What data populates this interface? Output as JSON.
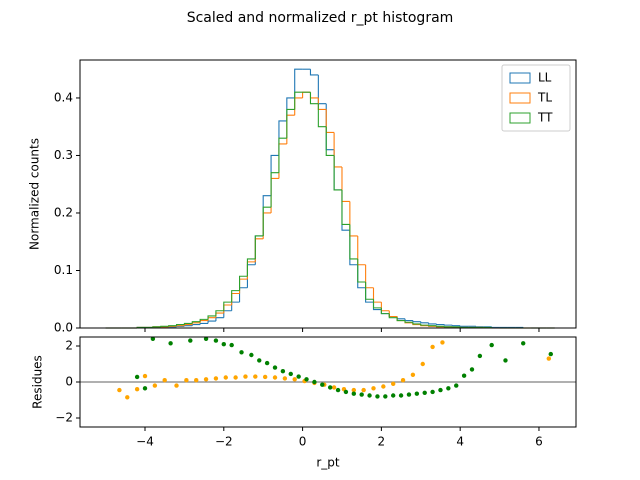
{
  "chart_data": [
    {
      "type": "histogram",
      "title": "Scaled and normalized r_pt histogram",
      "ylabel": "Normalized counts",
      "bins": [
        -5,
        -4.8,
        -4.6,
        -4.4,
        -4.2,
        -4,
        -3.8,
        -3.6,
        -3.4,
        -3.2,
        -3,
        -2.8,
        -2.6,
        -2.4,
        -2.2,
        -2,
        -1.8,
        -1.6,
        -1.4,
        -1.2,
        -1,
        -0.8,
        -0.6,
        -0.4,
        -0.2,
        0,
        0.2,
        0.4,
        0.6,
        0.8,
        1,
        1.2,
        1.4,
        1.6,
        1.8,
        2,
        2.2,
        2.4,
        2.6,
        2.8,
        3,
        3.2,
        3.4,
        3.6,
        3.8,
        4,
        4.2,
        4.4,
        4.6,
        4.8,
        5,
        5.2,
        5.4,
        5.6,
        5.8,
        6,
        6.2,
        6.4
      ],
      "series": [
        {
          "name": "LL",
          "color": "#1f77b4",
          "values": [
            0,
            0,
            0,
            0,
            0.001,
            0.001,
            0.001,
            0.001,
            0.002,
            0.003,
            0.004,
            0.006,
            0.008,
            0.012,
            0.018,
            0.03,
            0.045,
            0.07,
            0.11,
            0.16,
            0.23,
            0.3,
            0.36,
            0.4,
            0.45,
            0.45,
            0.44,
            0.39,
            0.31,
            0.24,
            0.17,
            0.11,
            0.07,
            0.045,
            0.032,
            0.025,
            0.02,
            0.016,
            0.013,
            0.011,
            0.009,
            0.007,
            0.006,
            0.005,
            0.004,
            0.003,
            0.003,
            0.002,
            0.002,
            0.001,
            0.001,
            0.001,
            0.001,
            0,
            0,
            0,
            0
          ]
        },
        {
          "name": "TL",
          "color": "#ff7f0e",
          "values": [
            0,
            0,
            0,
            0,
            0.001,
            0.001,
            0.002,
            0.002,
            0.003,
            0.004,
            0.006,
            0.009,
            0.013,
            0.018,
            0.026,
            0.04,
            0.06,
            0.085,
            0.115,
            0.155,
            0.2,
            0.26,
            0.32,
            0.37,
            0.4,
            0.41,
            0.4,
            0.38,
            0.34,
            0.28,
            0.22,
            0.16,
            0.11,
            0.07,
            0.045,
            0.03,
            0.02,
            0.013,
            0.009,
            0.006,
            0.004,
            0.003,
            0.002,
            0.002,
            0.001,
            0.001,
            0.001,
            0.001,
            0,
            0,
            0,
            0,
            0,
            0,
            0,
            0,
            0
          ]
        },
        {
          "name": "TT",
          "color": "#2ca02c",
          "values": [
            0,
            0,
            0,
            0,
            0.001,
            0.001,
            0.002,
            0.003,
            0.004,
            0.006,
            0.008,
            0.011,
            0.015,
            0.021,
            0.03,
            0.045,
            0.065,
            0.09,
            0.12,
            0.16,
            0.21,
            0.27,
            0.33,
            0.38,
            0.41,
            0.41,
            0.39,
            0.35,
            0.3,
            0.24,
            0.18,
            0.12,
            0.08,
            0.05,
            0.035,
            0.025,
            0.018,
            0.013,
            0.01,
            0.007,
            0.005,
            0.004,
            0.003,
            0.002,
            0.002,
            0.001,
            0.001,
            0.001,
            0.001,
            0,
            0,
            0,
            0,
            0,
            0,
            0,
            0
          ]
        }
      ],
      "xlim": [
        -5.65,
        6.94
      ],
      "ylim": [
        0,
        0.466
      ],
      "yticks": [
        {
          "value": 0,
          "label": "0.0"
        },
        0.1,
        0.2,
        0.3,
        0.4
      ],
      "legend": "upper right"
    },
    {
      "type": "scatter",
      "xlabel": "r_pt",
      "ylabel": "Residues",
      "series": [
        {
          "color": "orange",
          "x": [
            -4.65,
            -4.45,
            -4.2,
            -4.0,
            -3.75,
            -3.5,
            -3.2,
            -2.95,
            -2.7,
            -2.45,
            -2.2,
            -1.95,
            -1.7,
            -1.45,
            -1.2,
            -0.95,
            -0.7,
            -0.45,
            -0.2,
            0.05,
            0.3,
            0.55,
            0.8,
            1.05,
            1.3,
            1.55,
            1.8,
            2.05,
            2.3,
            2.55,
            2.8,
            3.05,
            3.3,
            3.55,
            6.25
          ],
          "values": [
            -0.45,
            -0.85,
            -0.4,
            0.33,
            -0.2,
            0.1,
            -0.2,
            0.1,
            0.1,
            0.15,
            0.2,
            0.25,
            0.25,
            0.3,
            0.3,
            0.28,
            0.25,
            0.2,
            0.15,
            0.05,
            -0.05,
            -0.15,
            -0.3,
            -0.4,
            -0.45,
            -0.45,
            -0.35,
            -0.25,
            -0.1,
            0.1,
            0.4,
            1.0,
            1.95,
            2.2,
            1.3
          ]
        },
        {
          "color": "green",
          "x": [
            -4.2,
            -4.0,
            -3.8,
            -3.35,
            -2.85,
            -2.45,
            -2.2,
            -2.0,
            -1.8,
            -1.55,
            -1.3,
            -1.1,
            -0.9,
            -0.7,
            -0.5,
            -0.3,
            -0.1,
            0.1,
            0.3,
            0.5,
            0.7,
            0.9,
            1.1,
            1.3,
            1.5,
            1.7,
            1.9,
            2.1,
            2.3,
            2.5,
            2.7,
            2.9,
            3.1,
            3.3,
            3.5,
            3.7,
            3.9,
            4.1,
            4.3,
            4.5,
            4.8,
            5.15,
            5.6,
            6.3
          ],
          "values": [
            0.28,
            -0.35,
            2.4,
            2.15,
            2.3,
            2.4,
            2.3,
            2.1,
            2.05,
            1.65,
            1.5,
            1.2,
            1.05,
            0.8,
            0.6,
            0.45,
            0.3,
            0.15,
            0.0,
            -0.15,
            -0.3,
            -0.45,
            -0.55,
            -0.65,
            -0.7,
            -0.75,
            -0.8,
            -0.8,
            -0.75,
            -0.75,
            -0.7,
            -0.65,
            -0.6,
            -0.55,
            -0.45,
            -0.35,
            -0.2,
            0.35,
            0.7,
            1.45,
            2.05,
            1.2,
            2.15,
            1.55
          ]
        }
      ],
      "hline": 0,
      "xlim": [
        -5.65,
        6.94
      ],
      "ylim": [
        -2.5,
        2.5
      ],
      "xticks": [
        {
          "value": -4,
          "label": "−4"
        },
        {
          "value": -2,
          "label": "−2"
        },
        0,
        2,
        4,
        6
      ],
      "yticks": [
        {
          "value": -2,
          "label": "−2"
        },
        0,
        2
      ]
    }
  ]
}
